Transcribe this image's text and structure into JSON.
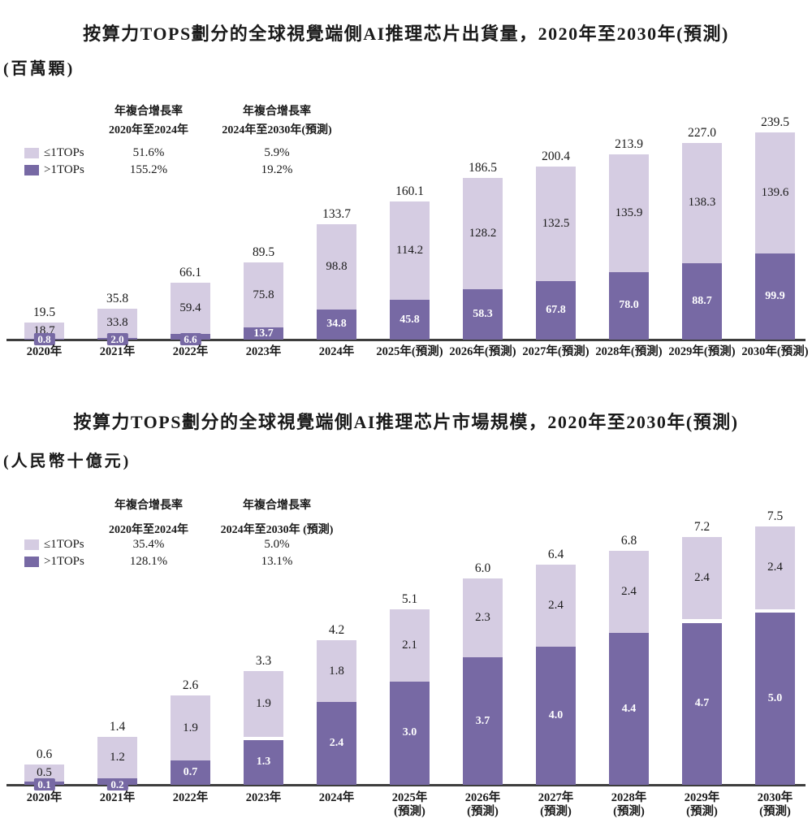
{
  "colors": {
    "light_series": "#D5CCE2",
    "dark_series": "#7769A4",
    "axis": "#3D3D3D",
    "text": "#1A1A1A",
    "on_dark_text": "#FFFFFF"
  },
  "charts": [
    {
      "title": "按算力TOPS劃分的全球視覺端側AI推理芯片出貨量，2020年至2030年(預測)",
      "unit": "(百萬顆)",
      "legend": {
        "col1": {
          "line1": "年複合增長率",
          "line2": "2020年至2024年"
        },
        "col2": {
          "line1": "年複合增長率",
          "line2": "2024年至2030年(預測)"
        },
        "rows": [
          {
            "label": "≤1TOPs",
            "col1_value": "51.6%",
            "col2_value": "5.9%",
            "series": "light"
          },
          {
            "label": ">1TOPs",
            "col1_value": "155.2%",
            "col2_value": "19.2%",
            "series": "dark"
          }
        ]
      },
      "chart_data": {
        "type": "bar",
        "stacked": true,
        "title": "按算力TOPS劃分的全球視覺端側AI推理芯片出貨量，2020年至2030年(預測)",
        "ylabel": "百萬顆",
        "grid": false,
        "legend_position": "top-left",
        "ylim": [
          0,
          250
        ],
        "categories": [
          [
            "2020年"
          ],
          [
            "2021年"
          ],
          [
            "2022年"
          ],
          [
            "2023年"
          ],
          [
            "2024年"
          ],
          [
            "2025年(預測)"
          ],
          [
            "2026年(預測)"
          ],
          [
            "2027年(預測)"
          ],
          [
            "2028年(預測)"
          ],
          [
            "2029年(預測)"
          ],
          [
            "2030年(預測)"
          ]
        ],
        "series": [
          {
            "name": "≤1TOPs",
            "values": [
              18.7,
              33.8,
              59.4,
              75.8,
              98.8,
              114.2,
              128.2,
              132.5,
              135.9,
              138.3,
              139.6
            ]
          },
          {
            "name": ">1TOPs",
            "values": [
              0.8,
              2.0,
              6.6,
              13.7,
              34.8,
              45.8,
              58.3,
              67.8,
              78.0,
              88.7,
              99.9
            ]
          }
        ],
        "totals": [
          19.5,
          35.8,
          66.1,
          89.5,
          133.7,
          160.1,
          186.5,
          200.4,
          213.9,
          227.0,
          239.5
        ]
      }
    },
    {
      "title": "按算力TOPS劃分的全球視覺端側AI推理芯片市場規模，2020年至2030年(預測)",
      "unit": "(人民幣十億元)",
      "legend": {
        "col1": {
          "line1": "年複合增長率",
          "line2": "2020年至2024年"
        },
        "col2": {
          "line1": "年複合增長率",
          "line2": "2024年至2030年 (預測)"
        },
        "rows": [
          {
            "label": "≤1TOPs",
            "col1_value": "35.4%",
            "col2_value": "5.0%",
            "series": "light"
          },
          {
            "label": ">1TOPs",
            "col1_value": "128.1%",
            "col2_value": "13.1%",
            "series": "dark"
          }
        ]
      },
      "chart_data": {
        "type": "bar",
        "stacked": true,
        "title": "按算力TOPS劃分的全球視覺端側AI推理芯片市場規模，2020年至2030年(預測)",
        "ylabel": "人民幣十億元",
        "grid": false,
        "legend_position": "top-left",
        "ylim": [
          0,
          8
        ],
        "categories": [
          [
            "2020年"
          ],
          [
            "2021年"
          ],
          [
            "2022年"
          ],
          [
            "2023年"
          ],
          [
            "2024年"
          ],
          [
            "2025年",
            "(預測)"
          ],
          [
            "2026年",
            "(預測)"
          ],
          [
            "2027年",
            "(預測)"
          ],
          [
            "2028年",
            "(預測)"
          ],
          [
            "2029年",
            "(預測)"
          ],
          [
            "2030年",
            "(預測)"
          ]
        ],
        "series": [
          {
            "name": "≤1TOPs",
            "values": [
              0.5,
              1.2,
              1.9,
              1.9,
              1.8,
              2.1,
              2.3,
              2.4,
              2.4,
              2.4,
              2.4
            ]
          },
          {
            "name": ">1TOPs",
            "values": [
              0.1,
              0.2,
              0.7,
              1.3,
              2.4,
              3.0,
              3.7,
              4.0,
              4.4,
              4.7,
              5.0
            ]
          }
        ],
        "totals": [
          0.6,
          1.4,
          2.6,
          3.3,
          4.2,
          5.1,
          6.0,
          6.4,
          6.8,
          7.2,
          7.5
        ]
      }
    }
  ]
}
